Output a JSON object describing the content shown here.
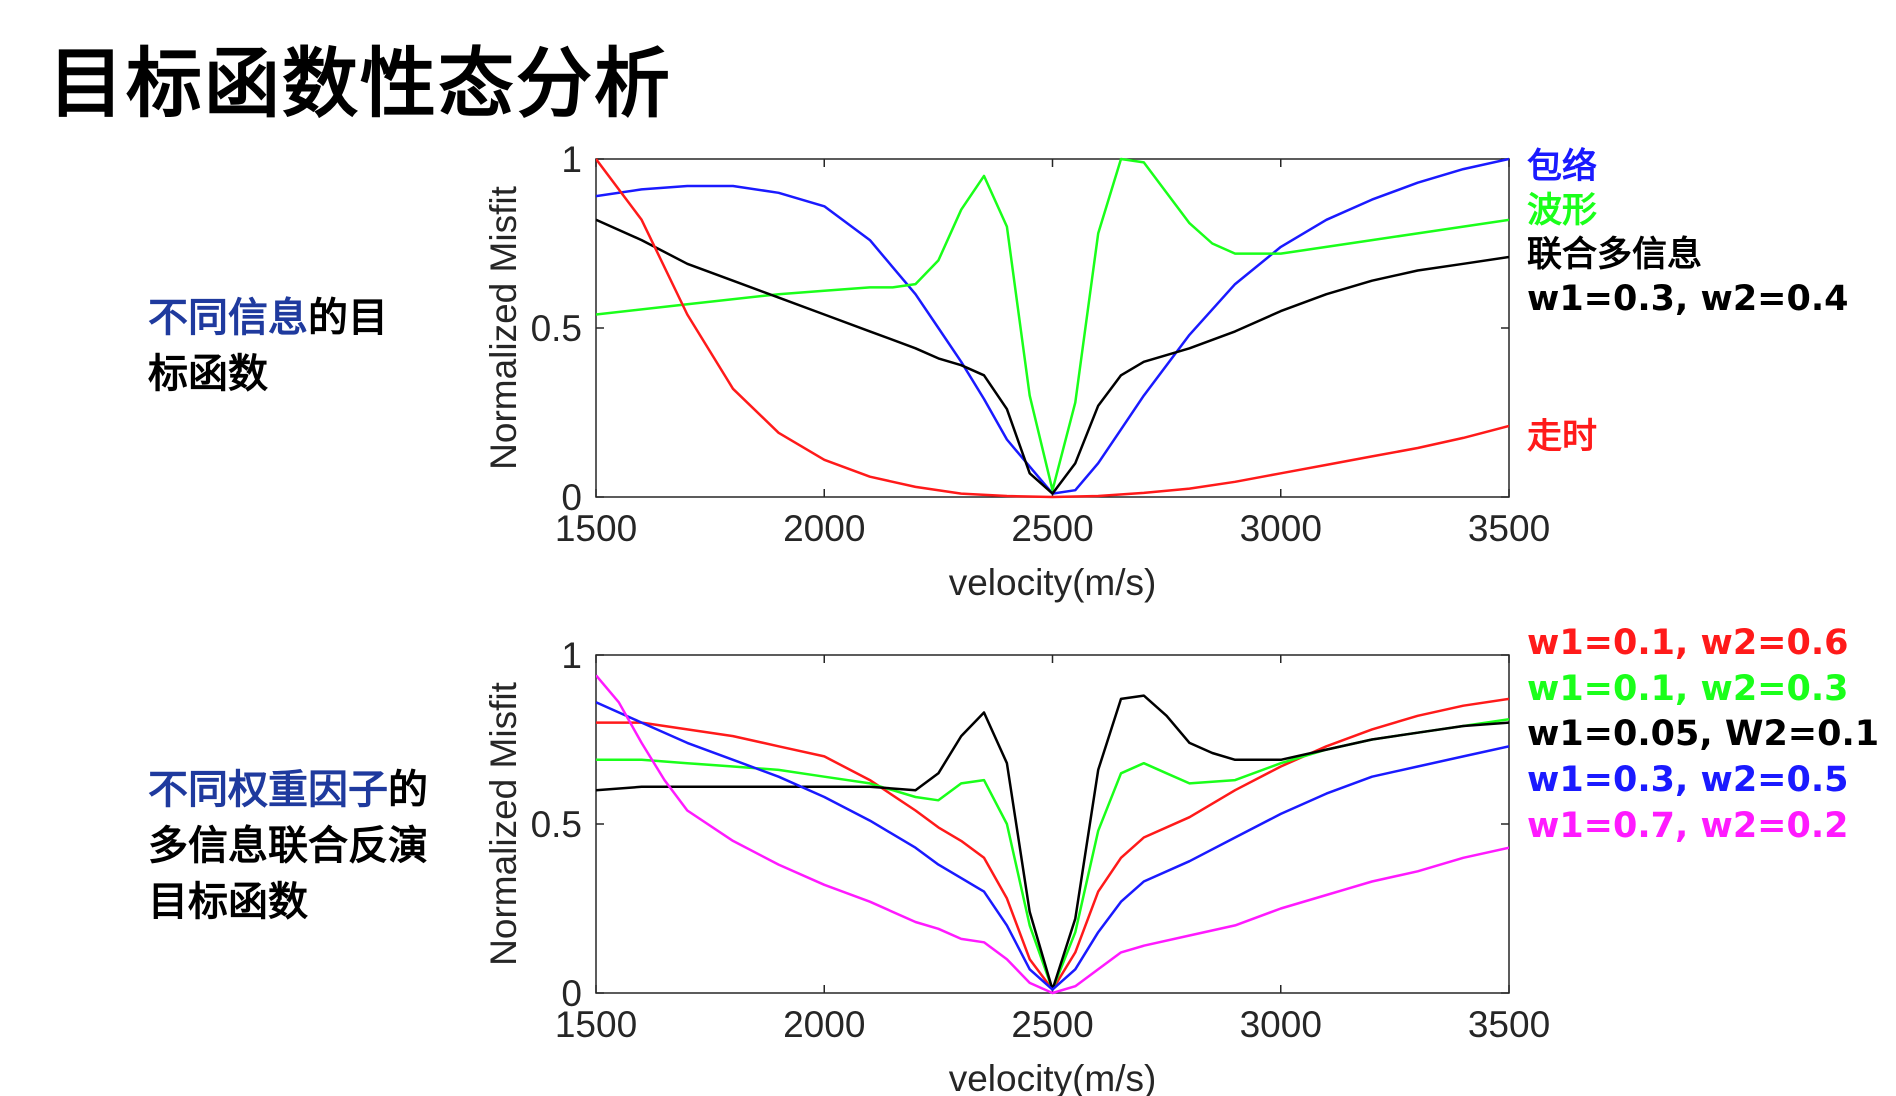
{
  "title": "目标函数性态分析",
  "captions": {
    "top": {
      "highlight": "不同信息",
      "rest1": "的目",
      "line2": "标函数"
    },
    "bottom": {
      "highlight": "不同权重因子",
      "rest1": "的",
      "line2": "多信息联合反演",
      "line3": "目标函数"
    }
  },
  "colors": {
    "envelope": "#1a1aff",
    "waveform": "#1aff1a",
    "joint": "#000000",
    "traveltime": "#ff1a1a",
    "magenta": "#ff1aff",
    "caption_highlight": "#1f3a9e"
  },
  "chart_data": [
    {
      "type": "line",
      "xlabel": "velocity(m/s)",
      "ylabel": "Normalized Misfit",
      "xlim": [
        1500,
        3500
      ],
      "ylim": [
        0,
        1
      ],
      "xticks": [
        "1500",
        "2000",
        "2500",
        "3000",
        "3500"
      ],
      "yticks": [
        "0",
        "0.5",
        "1"
      ],
      "grid": false,
      "legend_position": "right (outside)",
      "legend": [
        {
          "text": "包络",
          "color": "#1a1aff"
        },
        {
          "text": "波形",
          "color": "#1aff1a"
        },
        {
          "text": "联合多信息",
          "color": "#000000"
        },
        {
          "text": "w1=0.3, w2=0.4",
          "color": "#000000"
        },
        {
          "text": "走时",
          "color": "#ff1a1a"
        }
      ],
      "series": [
        {
          "color": "#1a1aff",
          "x": [
            1500,
            1600,
            1700,
            1800,
            1900,
            2000,
            2100,
            2150,
            2200,
            2250,
            2300,
            2350,
            2400,
            2450,
            2500,
            2550,
            2600,
            2650,
            2700,
            2800,
            2900,
            3000,
            3100,
            3200,
            3300,
            3400,
            3500
          ],
          "y": [
            0.89,
            0.91,
            0.92,
            0.92,
            0.9,
            0.86,
            0.76,
            0.68,
            0.6,
            0.5,
            0.4,
            0.29,
            0.17,
            0.09,
            0.01,
            0.02,
            0.1,
            0.2,
            0.3,
            0.48,
            0.63,
            0.74,
            0.82,
            0.88,
            0.93,
            0.97,
            1.0
          ]
        },
        {
          "color": "#1aff1a",
          "x": [
            1500,
            1700,
            1900,
            2000,
            2100,
            2150,
            2200,
            2250,
            2300,
            2350,
            2400,
            2450,
            2500,
            2550,
            2600,
            2650,
            2700,
            2750,
            2800,
            2850,
            2900,
            3000,
            3100,
            3200,
            3300,
            3400,
            3500
          ],
          "y": [
            0.54,
            0.57,
            0.6,
            0.61,
            0.62,
            0.62,
            0.63,
            0.7,
            0.85,
            0.95,
            0.8,
            0.3,
            0.02,
            0.28,
            0.78,
            1.0,
            0.99,
            0.9,
            0.81,
            0.75,
            0.72,
            0.72,
            0.74,
            0.76,
            0.78,
            0.8,
            0.82
          ]
        },
        {
          "color": "#000000",
          "x": [
            1500,
            1600,
            1700,
            1800,
            1900,
            2000,
            2100,
            2200,
            2250,
            2300,
            2350,
            2400,
            2450,
            2500,
            2550,
            2600,
            2650,
            2700,
            2800,
            2900,
            3000,
            3100,
            3200,
            3300,
            3400,
            3500
          ],
          "y": [
            0.82,
            0.76,
            0.69,
            0.64,
            0.59,
            0.54,
            0.49,
            0.44,
            0.41,
            0.39,
            0.36,
            0.26,
            0.07,
            0.01,
            0.1,
            0.27,
            0.36,
            0.4,
            0.44,
            0.49,
            0.55,
            0.6,
            0.64,
            0.67,
            0.69,
            0.71
          ]
        },
        {
          "color": "#ff1a1a",
          "x": [
            1500,
            1600,
            1700,
            1800,
            1900,
            2000,
            2100,
            2200,
            2300,
            2400,
            2500,
            2600,
            2700,
            2800,
            2900,
            3000,
            3100,
            3200,
            3300,
            3400,
            3500
          ],
          "y": [
            1.0,
            0.82,
            0.54,
            0.32,
            0.19,
            0.11,
            0.06,
            0.03,
            0.01,
            0.003,
            0.0,
            0.003,
            0.012,
            0.025,
            0.045,
            0.07,
            0.095,
            0.12,
            0.145,
            0.175,
            0.21
          ]
        }
      ]
    },
    {
      "type": "line",
      "xlabel": "velocity(m/s)",
      "ylabel": "Normalized Misfit",
      "xlim": [
        1500,
        3500
      ],
      "ylim": [
        0,
        1
      ],
      "xticks": [
        "1500",
        "2000",
        "2500",
        "3000",
        "3500"
      ],
      "yticks": [
        "0",
        "0.5",
        "1"
      ],
      "grid": false,
      "legend_position": "right (outside)",
      "legend": [
        {
          "text": "w1=0.1, w2=0.6",
          "color": "#ff1a1a"
        },
        {
          "text": "w1=0.1, w2=0.3",
          "color": "#1aff1a"
        },
        {
          "text": "w1=0.05, W2=0.1",
          "color": "#000000"
        },
        {
          "text": "w1=0.3, w2=0.5",
          "color": "#1a1aff"
        },
        {
          "text": "w1=0.7, w2=0.2",
          "color": "#ff1aff"
        }
      ],
      "series": [
        {
          "name": "w1=0.1, w2=0.6",
          "color": "#ff1a1a",
          "x": [
            1500,
            1600,
            1700,
            1800,
            1900,
            2000,
            2100,
            2200,
            2250,
            2300,
            2350,
            2400,
            2450,
            2500,
            2550,
            2600,
            2650,
            2700,
            2800,
            2900,
            3000,
            3100,
            3200,
            3300,
            3400,
            3500
          ],
          "y": [
            0.8,
            0.8,
            0.78,
            0.76,
            0.73,
            0.7,
            0.63,
            0.54,
            0.49,
            0.45,
            0.4,
            0.28,
            0.1,
            0.01,
            0.12,
            0.3,
            0.4,
            0.46,
            0.52,
            0.6,
            0.67,
            0.73,
            0.78,
            0.82,
            0.85,
            0.87
          ]
        },
        {
          "name": "w1=0.1, w2=0.3",
          "color": "#1aff1a",
          "x": [
            1500,
            1600,
            1700,
            1800,
            1900,
            2000,
            2100,
            2200,
            2250,
            2300,
            2350,
            2400,
            2450,
            2500,
            2550,
            2600,
            2650,
            2700,
            2750,
            2800,
            2900,
            3000,
            3100,
            3200,
            3300,
            3400,
            3500
          ],
          "y": [
            0.69,
            0.69,
            0.68,
            0.67,
            0.66,
            0.64,
            0.62,
            0.58,
            0.57,
            0.62,
            0.63,
            0.5,
            0.2,
            0.01,
            0.18,
            0.48,
            0.65,
            0.68,
            0.65,
            0.62,
            0.63,
            0.68,
            0.72,
            0.75,
            0.77,
            0.79,
            0.81
          ]
        },
        {
          "name": "w1=0.05, W2=0.1",
          "color": "#000000",
          "x": [
            1500,
            1600,
            1700,
            1800,
            1900,
            2000,
            2100,
            2200,
            2250,
            2300,
            2350,
            2400,
            2450,
            2500,
            2550,
            2600,
            2650,
            2700,
            2750,
            2800,
            2850,
            2900,
            3000,
            3100,
            3200,
            3300,
            3400,
            3500
          ],
          "y": [
            0.6,
            0.61,
            0.61,
            0.61,
            0.61,
            0.61,
            0.61,
            0.6,
            0.65,
            0.76,
            0.83,
            0.68,
            0.24,
            0.01,
            0.22,
            0.66,
            0.87,
            0.88,
            0.82,
            0.74,
            0.71,
            0.69,
            0.69,
            0.72,
            0.75,
            0.77,
            0.79,
            0.8
          ]
        },
        {
          "name": "w1=0.3, w2=0.5",
          "color": "#1a1aff",
          "x": [
            1500,
            1600,
            1700,
            1800,
            1900,
            2000,
            2100,
            2200,
            2250,
            2300,
            2350,
            2400,
            2450,
            2500,
            2550,
            2600,
            2650,
            2700,
            2800,
            2900,
            3000,
            3100,
            3200,
            3300,
            3400,
            3500
          ],
          "y": [
            0.86,
            0.8,
            0.74,
            0.69,
            0.64,
            0.58,
            0.51,
            0.43,
            0.38,
            0.34,
            0.3,
            0.2,
            0.07,
            0.01,
            0.07,
            0.18,
            0.27,
            0.33,
            0.39,
            0.46,
            0.53,
            0.59,
            0.64,
            0.67,
            0.7,
            0.73
          ]
        },
        {
          "name": "w1=0.7, w2=0.2",
          "color": "#ff1aff",
          "x": [
            1500,
            1550,
            1600,
            1650,
            1700,
            1800,
            1900,
            2000,
            2100,
            2200,
            2250,
            2300,
            2350,
            2400,
            2450,
            2500,
            2550,
            2600,
            2650,
            2700,
            2800,
            2900,
            3000,
            3100,
            3200,
            3300,
            3400,
            3500
          ],
          "y": [
            0.94,
            0.86,
            0.74,
            0.63,
            0.54,
            0.45,
            0.38,
            0.32,
            0.27,
            0.21,
            0.19,
            0.16,
            0.15,
            0.1,
            0.03,
            0.0,
            0.02,
            0.07,
            0.12,
            0.14,
            0.17,
            0.2,
            0.25,
            0.29,
            0.33,
            0.36,
            0.4,
            0.43
          ]
        }
      ]
    }
  ]
}
